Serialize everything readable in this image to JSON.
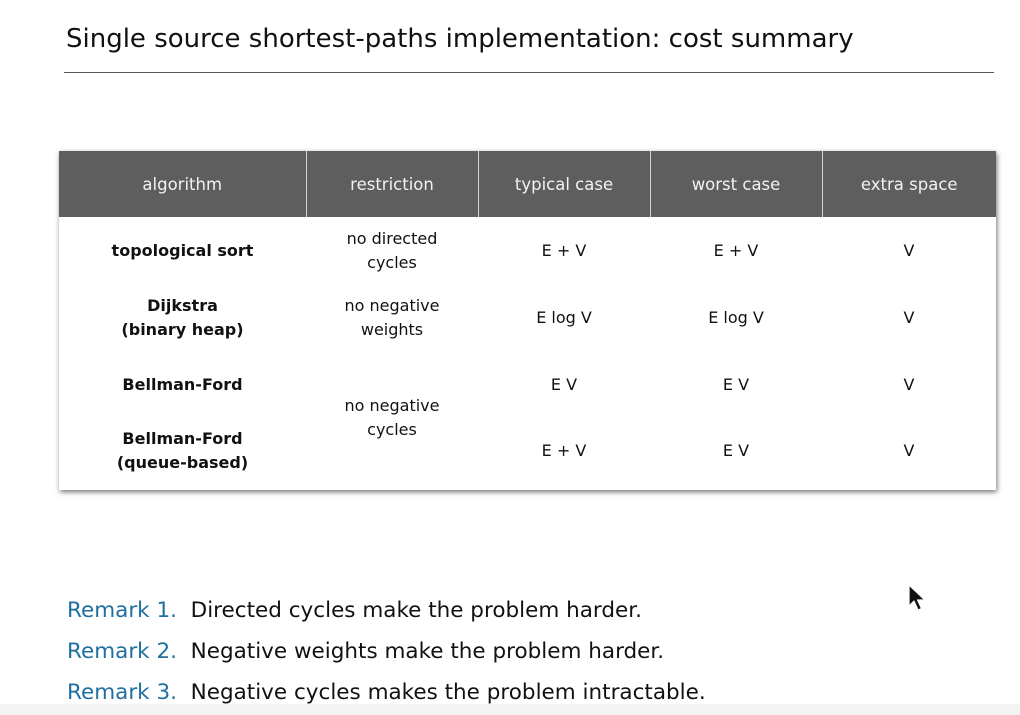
{
  "slide": {
    "title": "Single source shortest-paths implementation:  cost summary"
  },
  "table": {
    "headers": [
      "algorithm",
      "restriction",
      "typical case",
      "worst case",
      "extra space"
    ],
    "rows": [
      {
        "algorithm": [
          "topological sort"
        ],
        "restriction": [
          "no directed",
          "cycles"
        ],
        "typical": "E + V",
        "worst": "E + V",
        "space": "V"
      },
      {
        "algorithm": [
          "Dijkstra",
          "(binary heap)"
        ],
        "restriction": [
          "no negative",
          "weights"
        ],
        "typical": "E log V",
        "worst": "E log V",
        "space": "V"
      },
      {
        "algorithm": [
          "Bellman-Ford"
        ],
        "restriction": [
          "no negative",
          "cycles"
        ],
        "typical": "E V",
        "worst": "E V",
        "space": "V"
      },
      {
        "algorithm": [
          "Bellman-Ford",
          "(queue-based)"
        ],
        "typical": "E + V",
        "worst": "E V",
        "space": "V"
      }
    ]
  },
  "remarks": [
    {
      "label": "Remark 1.",
      "text": "Directed cycles make the problem harder."
    },
    {
      "label": "Remark 2.",
      "text": "Negative weights make the problem harder."
    },
    {
      "label": "Remark 3.",
      "text": "Negative cycles makes the problem intractable."
    }
  ],
  "colors": {
    "header_bg": "#5e5e5e",
    "remark_label": "#1f6f9f"
  },
  "icons": {
    "cursor": "mouse-pointer-icon"
  }
}
